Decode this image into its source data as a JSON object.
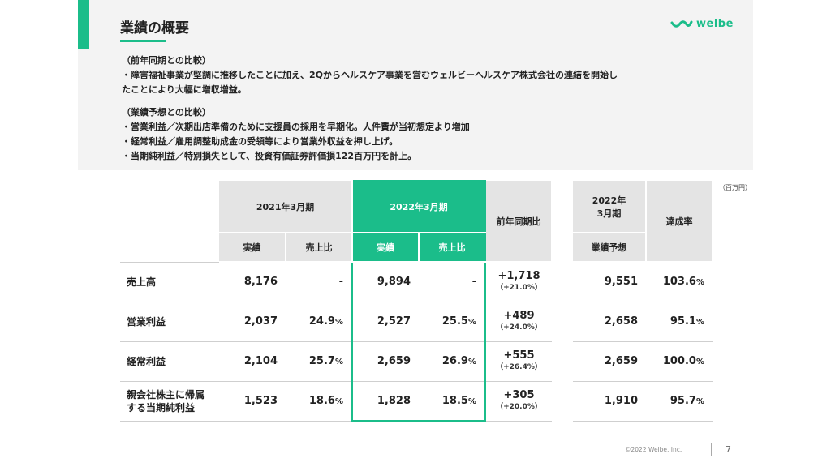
{
  "title": "業績の概要",
  "logo": {
    "text": "welbe"
  },
  "notes": {
    "yoy_heading": "（前年同期との比較）",
    "yoy_lines": [
      "・障害福祉事業が堅調に推移したことに加え、2Qからヘルスケア事業を営むウェルビーヘルスケア株式会社の連結を開始し",
      "たことにより大幅に増収増益。"
    ],
    "forecast_heading": "（業績予想との比較）",
    "forecast_lines": [
      "・営業利益／次期出店準備のために支援員の採用を早期化。人件費が当初想定より増加",
      "・経常利益／雇用調整助成金の受領等により営業外収益を押し上げ。",
      "・当期純利益／特別損失として、投資有価証券評価損122百万円を計上。"
    ]
  },
  "unit": "（百万円）",
  "table": {
    "header": {
      "fy2021": "2021年3月期",
      "fy2022": "2022年3月期",
      "yoy": "前年同期比",
      "forecast_year_line1": "2022年",
      "forecast_year_line2": "3月期",
      "achievement": "達成率",
      "actual": "実績",
      "sales_ratio": "売上比",
      "forecast": "業績予想"
    },
    "rows": [
      {
        "label": "売上高",
        "label2": "",
        "a2021": "8,176",
        "r2021": "-",
        "a2022": "9,894",
        "r2022": "-",
        "yoy": "+1,718",
        "yoy_pct": "（+21.0%）",
        "forecast": "9,551",
        "achieve": "103.6"
      },
      {
        "label": "営業利益",
        "label2": "",
        "a2021": "2,037",
        "r2021": "24.9",
        "a2022": "2,527",
        "r2022": "25.5",
        "yoy": "+489",
        "yoy_pct": "（+24.0%）",
        "forecast": "2,658",
        "achieve": "95.1"
      },
      {
        "label": "経常利益",
        "label2": "",
        "a2021": "2,104",
        "r2021": "25.7",
        "a2022": "2,659",
        "r2022": "26.9",
        "yoy": "+555",
        "yoy_pct": "（+26.4%）",
        "forecast": "2,659",
        "achieve": "100.0"
      },
      {
        "label": "親会社株主に帰属",
        "label2": "する当期純利益",
        "a2021": "1,523",
        "r2021": "18.6",
        "a2022": "1,828",
        "r2022": "18.5",
        "yoy": "+305",
        "yoy_pct": "（+20.0%）",
        "forecast": "1,910",
        "achieve": "95.7"
      }
    ],
    "percent_sign": "%"
  },
  "footer": {
    "copyright": "©2022 Welbe, Inc.",
    "page": "7"
  },
  "colors": {
    "accent": "#1bbd8a",
    "header_gray": "#e4e4e4",
    "band_gray": "#f3f3f3"
  }
}
